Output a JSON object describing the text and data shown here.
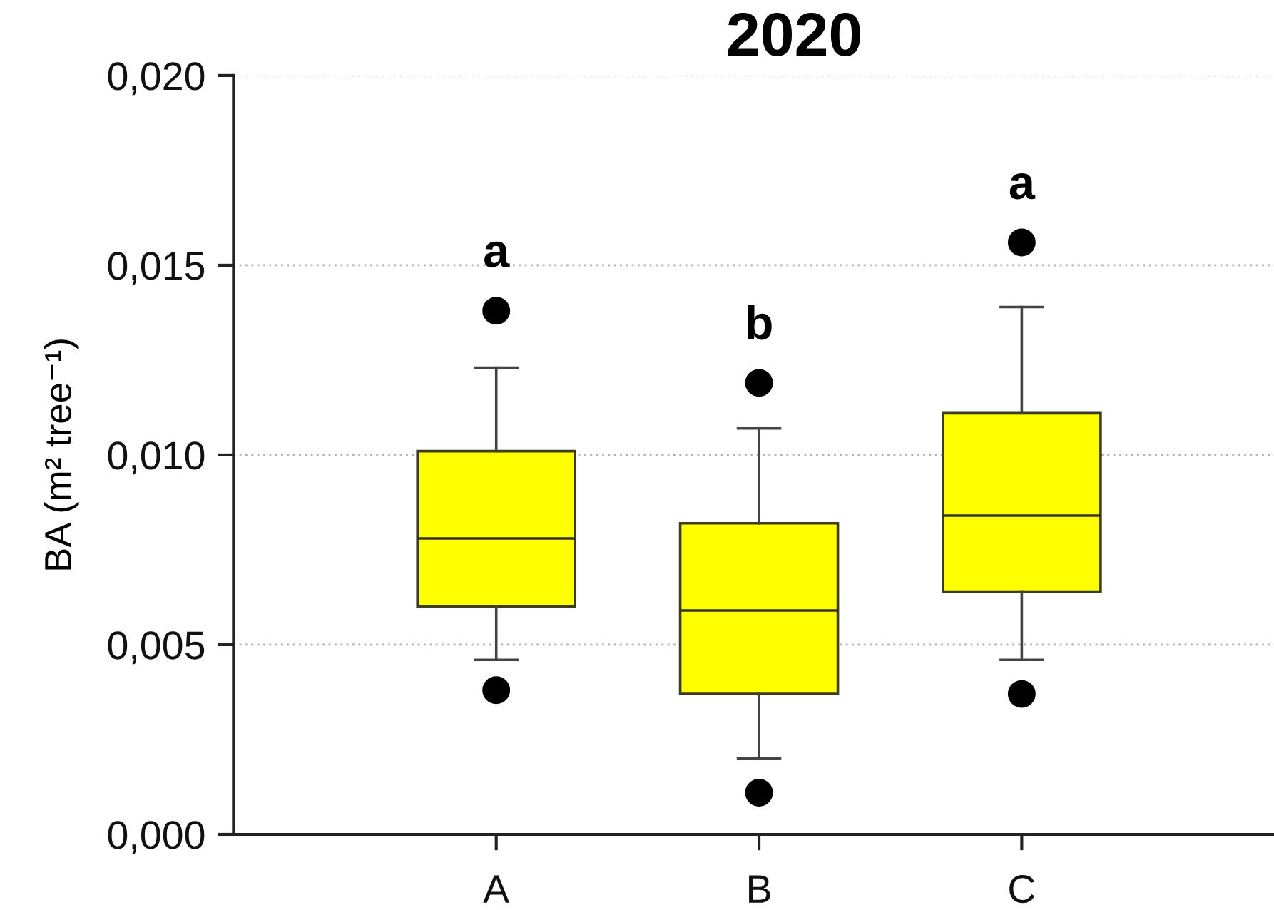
{
  "chart_data": {
    "type": "box",
    "title": "2020",
    "ylabel": "BA (m² tree⁻¹)",
    "categories": [
      "A",
      "B",
      "C"
    ],
    "boxes": [
      {
        "low": 0.0046,
        "q1": 0.006,
        "median": 0.0078,
        "q3": 0.0101,
        "high": 0.0123,
        "outliers": [
          0.0038,
          0.0138
        ]
      },
      {
        "low": 0.002,
        "q1": 0.0037,
        "median": 0.0059,
        "q3": 0.0082,
        "high": 0.0107,
        "outliers": [
          0.0011,
          0.0119
        ]
      },
      {
        "low": 0.0046,
        "q1": 0.0064,
        "median": 0.0084,
        "q3": 0.0111,
        "high": 0.0139,
        "outliers": [
          0.0037,
          0.0156
        ]
      }
    ],
    "color": "#ffff00",
    "ylim": [
      0,
      0.02
    ],
    "yticks": [
      {
        "value": 0,
        "label": "0,000"
      },
      {
        "value": 0.005,
        "label": "0,005"
      },
      {
        "value": 0.01,
        "label": "0,010"
      },
      {
        "value": 0.015,
        "label": "0,015"
      },
      {
        "value": 0.02,
        "label": "0,020"
      }
    ],
    "grid": "y",
    "annotations": [
      "a",
      "b",
      "a"
    ]
  }
}
